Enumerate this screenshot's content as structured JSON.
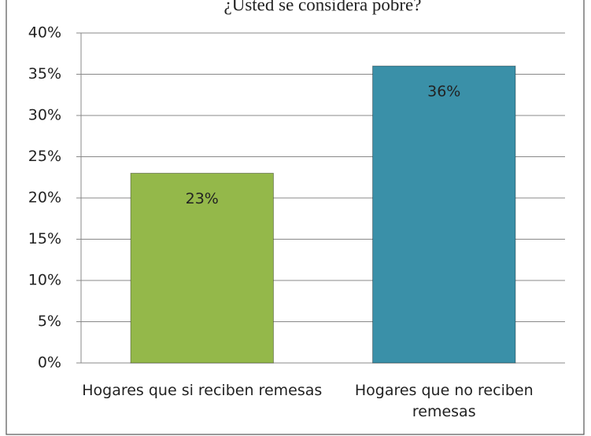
{
  "chart_data": {
    "type": "bar",
    "title": "¿Usted se considera pobre?",
    "categories": [
      "Hogares que si reciben remesas",
      "Hogares que no reciben remesas"
    ],
    "values": [
      23,
      36
    ],
    "value_labels": [
      "23%",
      "36%"
    ],
    "colors": [
      "#94b84a",
      "#3a90a8"
    ],
    "ylim": [
      0,
      40
    ],
    "yticks": [
      {
        "value": 0,
        "label": "0%"
      },
      {
        "value": 5,
        "label": "5%"
      },
      {
        "value": 10,
        "label": "10%"
      },
      {
        "value": 15,
        "label": "15%"
      },
      {
        "value": 20,
        "label": "20%"
      },
      {
        "value": 25,
        "label": "25%"
      },
      {
        "value": 30,
        "label": "30%"
      },
      {
        "value": 35,
        "label": "35%"
      },
      {
        "value": 40,
        "label": "40%"
      }
    ],
    "grid": true
  }
}
